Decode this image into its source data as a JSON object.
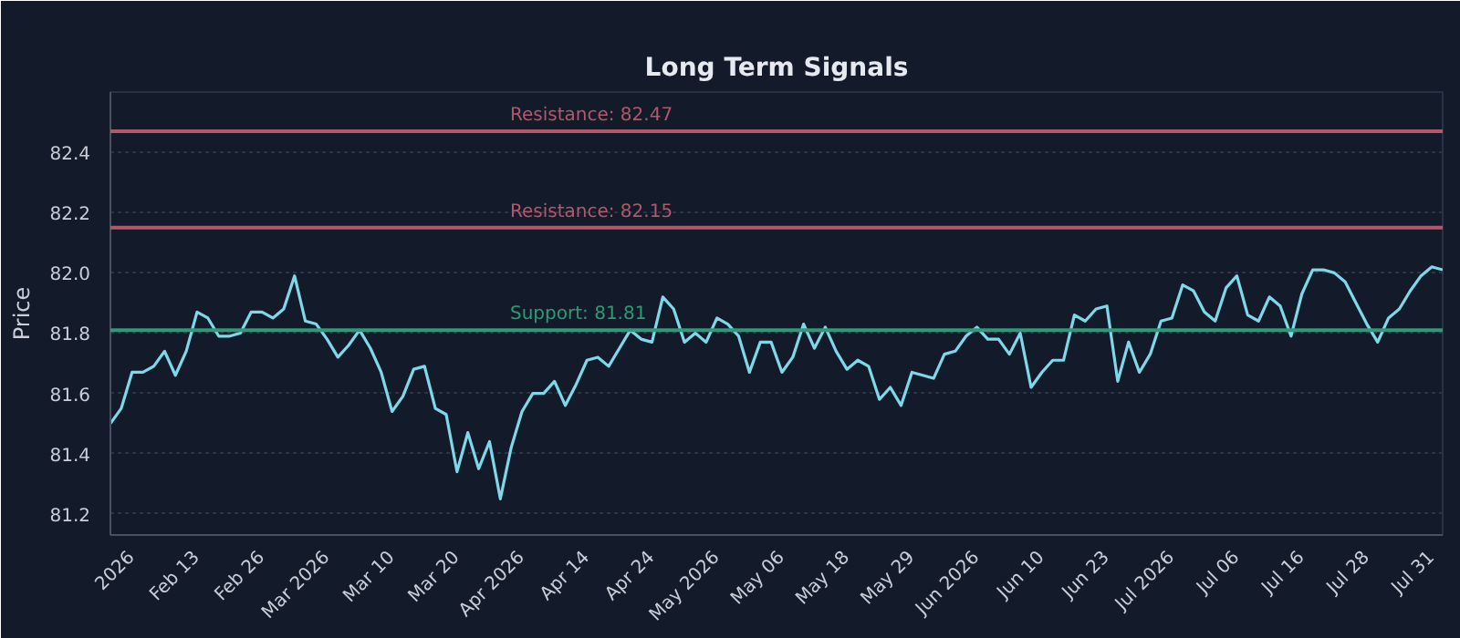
{
  "chart_data": {
    "type": "line",
    "title": "Long Term Signals",
    "ylabel": "Price",
    "categories": [
      null,
      null,
      "2026",
      null,
      null,
      null,
      null,
      null,
      "Feb 13",
      null,
      null,
      null,
      null,
      null,
      "Feb 26",
      null,
      null,
      null,
      null,
      null,
      "Mar 2026",
      null,
      null,
      null,
      null,
      null,
      "Mar 10",
      null,
      null,
      null,
      null,
      null,
      "Mar 20",
      null,
      null,
      null,
      null,
      null,
      "Apr 2026",
      null,
      null,
      null,
      null,
      null,
      "Apr 14",
      null,
      null,
      null,
      null,
      null,
      "Apr 24",
      null,
      null,
      null,
      null,
      null,
      "May 2026",
      null,
      null,
      null,
      null,
      null,
      "May 06",
      null,
      null,
      null,
      null,
      null,
      "May 18",
      null,
      null,
      null,
      null,
      null,
      "May 29",
      null,
      null,
      null,
      null,
      null,
      "Jun 2026",
      null,
      null,
      null,
      null,
      null,
      "Jun 10",
      null,
      null,
      null,
      null,
      null,
      "Jun 23",
      null,
      null,
      null,
      null,
      null,
      "Jul 2026",
      null,
      null,
      null,
      null,
      null,
      "Jul 06",
      null,
      null,
      null,
      null,
      null,
      "Jul 16",
      null,
      null,
      null,
      null,
      null,
      "Jul 28",
      null,
      null,
      null,
      null,
      null,
      "Jul 31",
      null
    ],
    "series": [
      {
        "color": "#7fd8ea",
        "values": [
          81.5,
          81.55,
          81.67,
          81.67,
          81.69,
          81.74,
          81.66,
          81.74,
          81.87,
          81.85,
          81.79,
          81.79,
          81.8,
          81.87,
          81.87,
          81.85,
          81.88,
          81.99,
          81.84,
          81.83,
          81.78,
          81.72,
          81.76,
          81.81,
          81.75,
          81.67,
          81.54,
          81.59,
          81.68,
          81.69,
          81.55,
          81.53,
          81.34,
          81.47,
          81.35,
          81.44,
          81.25,
          81.42,
          81.54,
          81.6,
          81.6,
          81.64,
          81.56,
          81.63,
          81.71,
          81.72,
          81.69,
          81.75,
          81.81,
          81.78,
          81.77,
          81.92,
          81.88,
          81.77,
          81.8,
          81.77,
          81.85,
          81.83,
          81.79,
          81.67,
          81.77,
          81.77,
          81.67,
          81.72,
          81.83,
          81.75,
          81.82,
          81.74,
          81.68,
          81.71,
          81.69,
          81.58,
          81.62,
          81.56,
          81.67,
          81.66,
          81.65,
          81.73,
          81.74,
          81.79,
          81.82,
          81.78,
          81.78,
          81.73,
          81.8,
          81.62,
          81.67,
          81.71,
          81.71,
          81.86,
          81.84,
          81.88,
          81.89,
          81.64,
          81.77,
          81.67,
          81.73,
          81.84,
          81.85,
          81.96,
          81.94,
          81.87,
          81.84,
          81.95,
          81.99,
          81.86,
          81.84,
          81.92,
          81.89,
          81.79,
          81.93,
          82.01,
          82.01,
          82.0,
          81.97,
          81.9,
          81.83,
          81.77,
          81.85,
          81.88,
          81.94,
          81.99,
          82.02,
          82.01
        ]
      }
    ],
    "ylim": [
      81.13,
      82.6
    ],
    "yticks": [
      81.2,
      81.4,
      81.6,
      81.8,
      {
        "value": 82,
        "label": "82.0"
      },
      82.2,
      82.4
    ],
    "ref_lines": [
      {
        "axis": "y",
        "value": 82.47,
        "label": "Resistance: 82.47",
        "color": "#b0596a"
      },
      {
        "axis": "y",
        "value": 82.15,
        "label": "Resistance: 82.15",
        "color": "#b0596a"
      },
      {
        "axis": "y",
        "value": 81.81,
        "label": "Support: 81.81",
        "color": "#2e9a78"
      }
    ],
    "grid": "y",
    "line_style": "solid"
  }
}
